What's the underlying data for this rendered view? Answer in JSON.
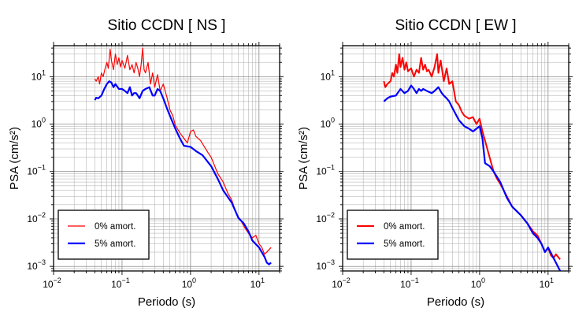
{
  "chart_data": [
    {
      "type": "line",
      "title": "Sitio CCDN [ NS ]",
      "xlabel": "Periodo (s)",
      "ylabel": "PSA (cm/s²)",
      "xscale": "log",
      "yscale": "log",
      "xlim": [
        0.01,
        20
      ],
      "ylim": [
        0.0008,
        45
      ],
      "x_ticks": [
        {
          "base": "10",
          "exp": "−2",
          "value": 0.01
        },
        {
          "base": "10",
          "exp": "−1",
          "value": 0.1
        },
        {
          "base": "10",
          "exp": "0",
          "value": 1
        },
        {
          "base": "10",
          "exp": "1",
          "value": 10
        }
      ],
      "y_ticks": [
        {
          "base": "10",
          "exp": "−3",
          "value": 0.001
        },
        {
          "base": "10",
          "exp": "−2",
          "value": 0.01
        },
        {
          "base": "10",
          "exp": "−1",
          "value": 0.1
        },
        {
          "base": "10",
          "exp": "0",
          "value": 1
        },
        {
          "base": "10",
          "exp": "1",
          "value": 10
        }
      ],
      "grid": true,
      "legend_position": "bottom-left",
      "series": [
        {
          "name": "0% amort.",
          "color": "#ff0000",
          "width": 1.2,
          "x": [
            0.04,
            0.042,
            0.045,
            0.047,
            0.05,
            0.053,
            0.056,
            0.06,
            0.063,
            0.067,
            0.07,
            0.075,
            0.08,
            0.085,
            0.09,
            0.095,
            0.1,
            0.11,
            0.12,
            0.13,
            0.14,
            0.15,
            0.16,
            0.17,
            0.18,
            0.19,
            0.2,
            0.21,
            0.22,
            0.24,
            0.26,
            0.28,
            0.3,
            0.33,
            0.36,
            0.4,
            0.45,
            0.5,
            0.55,
            0.6,
            0.7,
            0.8,
            0.9,
            1.0,
            1.1,
            1.2,
            1.4,
            1.6,
            1.8,
            2.0,
            2.5,
            3.0,
            3.5,
            4.0,
            4.5,
            5.0,
            5.5,
            6.0,
            7.0,
            8.0,
            9.0,
            10.0,
            11.0,
            12.0,
            13.0,
            15.0
          ],
          "y": [
            9,
            8,
            10,
            7,
            12,
            10,
            14,
            20,
            15,
            38,
            22,
            14,
            30,
            18,
            25,
            16,
            22,
            15,
            28,
            14,
            18,
            12,
            20,
            15,
            10,
            18,
            40,
            14,
            12,
            20,
            7,
            12,
            6,
            11,
            5,
            7,
            3.8,
            2,
            1.5,
            0.95,
            0.65,
            0.5,
            0.4,
            0.7,
            0.75,
            0.55,
            0.45,
            0.33,
            0.25,
            0.2,
            0.09,
            0.06,
            0.035,
            0.025,
            0.015,
            0.011,
            0.009,
            0.007,
            0.005,
            0.004,
            0.0045,
            0.003,
            0.0025,
            0.0018,
            0.002,
            0.0025
          ]
        },
        {
          "name": "5% amort.",
          "color": "#0000ff",
          "width": 2.2,
          "x": [
            0.04,
            0.042,
            0.045,
            0.05,
            0.055,
            0.06,
            0.065,
            0.07,
            0.075,
            0.08,
            0.09,
            0.1,
            0.11,
            0.12,
            0.13,
            0.14,
            0.15,
            0.16,
            0.17,
            0.18,
            0.2,
            0.22,
            0.25,
            0.28,
            0.3,
            0.33,
            0.36,
            0.4,
            0.45,
            0.5,
            0.6,
            0.7,
            0.8,
            1.0,
            1.2,
            1.5,
            2.0,
            2.5,
            3.0,
            4.0,
            5.0,
            6.0,
            7.0,
            8.0,
            10.0,
            12.0,
            13.0,
            14.0,
            15.0
          ],
          "y": [
            3.2,
            3.6,
            3.5,
            4,
            5.5,
            7,
            8,
            7.5,
            6,
            7,
            5.5,
            5.5,
            5,
            4.5,
            6,
            4,
            4.5,
            4.5,
            4,
            3.5,
            5,
            5.5,
            6,
            4,
            4,
            5.5,
            5,
            3.5,
            2.2,
            1.5,
            0.8,
            0.5,
            0.35,
            0.33,
            0.27,
            0.22,
            0.13,
            0.07,
            0.04,
            0.022,
            0.0105,
            0.008,
            0.0055,
            0.0035,
            0.0025,
            0.0016,
            0.0012,
            0.0011,
            0.0012
          ]
        }
      ]
    },
    {
      "type": "line",
      "title": "Sitio CCDN [ EW ]",
      "xlabel": "Periodo (s)",
      "ylabel": "PSA (cm/s²)",
      "xscale": "log",
      "yscale": "log",
      "xlim": [
        0.01,
        20
      ],
      "ylim": [
        0.0008,
        45
      ],
      "x_ticks": [
        {
          "base": "10",
          "exp": "−2",
          "value": 0.01
        },
        {
          "base": "10",
          "exp": "−1",
          "value": 0.1
        },
        {
          "base": "10",
          "exp": "0",
          "value": 1
        },
        {
          "base": "10",
          "exp": "1",
          "value": 10
        }
      ],
      "y_ticks": [
        {
          "base": "10",
          "exp": "−3",
          "value": 0.001
        },
        {
          "base": "10",
          "exp": "−2",
          "value": 0.01
        },
        {
          "base": "10",
          "exp": "−1",
          "value": 0.1
        },
        {
          "base": "10",
          "exp": "0",
          "value": 1
        },
        {
          "base": "10",
          "exp": "1",
          "value": 10
        }
      ],
      "grid": true,
      "legend_position": "bottom-left",
      "series": [
        {
          "name": "0% amort.",
          "color": "#ff0000",
          "width": 2.0,
          "x": [
            0.04,
            0.042,
            0.045,
            0.05,
            0.053,
            0.056,
            0.06,
            0.063,
            0.067,
            0.07,
            0.075,
            0.08,
            0.085,
            0.09,
            0.1,
            0.11,
            0.12,
            0.13,
            0.14,
            0.15,
            0.16,
            0.17,
            0.18,
            0.2,
            0.22,
            0.24,
            0.25,
            0.27,
            0.3,
            0.33,
            0.36,
            0.4,
            0.45,
            0.5,
            0.55,
            0.6,
            0.7,
            0.8,
            0.9,
            1.0,
            1.1,
            1.2,
            1.4,
            1.6,
            1.8,
            2.0,
            2.5,
            3.0,
            4.0,
            5.0,
            6.0,
            7.0,
            8.0,
            9.0,
            10.0,
            11.0,
            12.0,
            13.0,
            15.0
          ],
          "y": [
            8,
            6,
            7,
            8,
            12,
            10,
            18,
            12,
            30,
            16,
            25,
            14,
            20,
            13,
            15,
            10,
            14,
            12,
            25,
            14,
            18,
            13,
            14,
            10,
            16,
            30,
            12,
            22,
            8,
            15,
            7,
            8,
            3,
            2.5,
            1.8,
            1.5,
            1.3,
            1.4,
            1.0,
            1.3,
            0.7,
            0.45,
            0.2,
            0.1,
            0.07,
            0.055,
            0.03,
            0.018,
            0.012,
            0.008,
            0.0055,
            0.0045,
            0.003,
            0.002,
            0.0025,
            0.0017,
            0.0015,
            0.0018,
            0.0014
          ]
        },
        {
          "name": "5% amort.",
          "color": "#0000ff",
          "width": 2.2,
          "x": [
            0.04,
            0.045,
            0.05,
            0.06,
            0.07,
            0.08,
            0.09,
            0.1,
            0.11,
            0.12,
            0.13,
            0.14,
            0.15,
            0.17,
            0.2,
            0.22,
            0.25,
            0.28,
            0.3,
            0.33,
            0.36,
            0.4,
            0.45,
            0.5,
            0.6,
            0.7,
            0.8,
            1.0,
            1.1,
            1.2,
            1.4,
            1.6,
            2.0,
            2.5,
            3.0,
            4.0,
            5.0,
            6.0,
            7.0,
            8.0,
            9.0,
            10.0,
            12.0,
            13.0,
            15.0
          ],
          "y": [
            3,
            3.5,
            3.8,
            4,
            5.5,
            4.5,
            5,
            6.5,
            5.5,
            4.5,
            5.5,
            5,
            5.5,
            5,
            4.5,
            5,
            6,
            4.5,
            4,
            3.5,
            3,
            2.2,
            1.6,
            1.2,
            0.9,
            0.8,
            0.7,
            0.9,
            0.5,
            0.15,
            0.13,
            0.1,
            0.06,
            0.028,
            0.018,
            0.012,
            0.008,
            0.005,
            0.004,
            0.003,
            0.002,
            0.0025,
            0.0015,
            0.0012,
            0.0008
          ]
        }
      ]
    }
  ]
}
